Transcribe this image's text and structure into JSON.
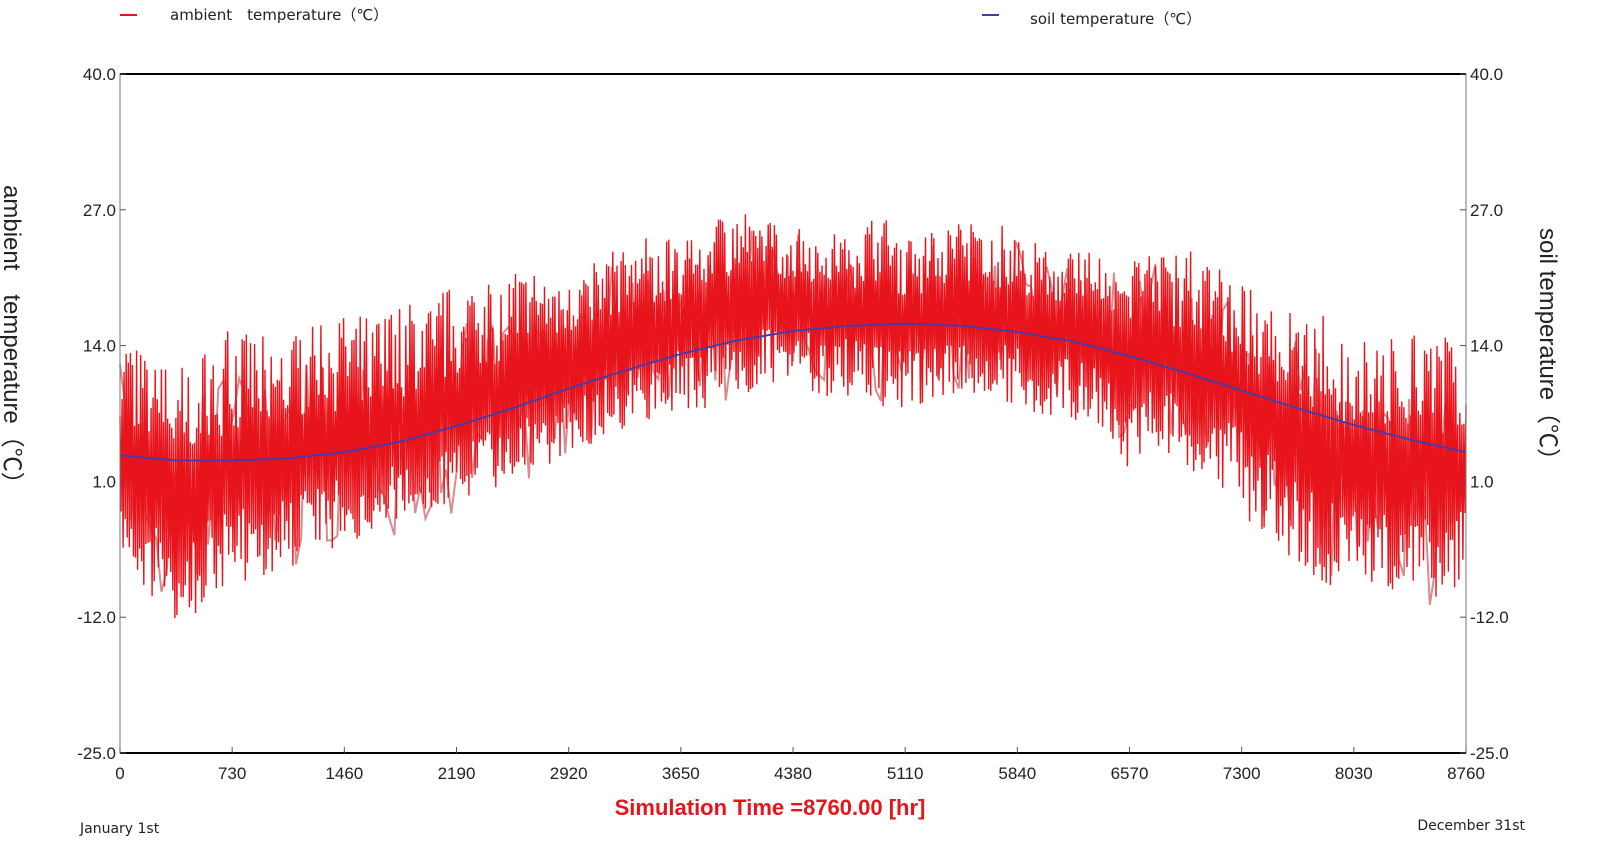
{
  "chart_data": {
    "type": "line",
    "xlabel": "Simulation Time =8760.00 [hr]",
    "ylabel_left": "ambient　temperature（℃）",
    "ylabel_right": "soil temperature（℃）",
    "start_label": "January 1st",
    "end_label": "December 31st",
    "xlim": [
      0,
      8760
    ],
    "ylim": [
      -25.0,
      40.0
    ],
    "x_ticks": [
      0,
      730,
      1460,
      2190,
      2920,
      3650,
      4380,
      5110,
      5840,
      6570,
      7300,
      8030,
      8760
    ],
    "y_ticks": [
      "-25.0",
      "-12.0",
      "1.0",
      "14.0",
      "27.0",
      "40.0"
    ],
    "colors": {
      "ambient": "#e8141c",
      "ambient_light": "#d98b8e",
      "soil": "#4a3aa8",
      "axis": "#000000"
    },
    "series": [
      {
        "name": "ambient　temperature（℃）",
        "x": [
          0,
          180,
          365,
          550,
          730,
          915,
          1095,
          1280,
          1460,
          1645,
          1825,
          2010,
          2190,
          2375,
          2555,
          2740,
          2920,
          3105,
          3285,
          3470,
          3650,
          3835,
          4015,
          4200,
          4380,
          4565,
          4745,
          4930,
          5110,
          5295,
          5475,
          5660,
          5840,
          6025,
          6205,
          6390,
          6570,
          6755,
          6935,
          7120,
          7300,
          7485,
          7665,
          7850,
          8030,
          8215,
          8395,
          8580,
          8760
        ],
        "y": [
          3.5,
          1.0,
          -1.0,
          0.5,
          1.5,
          2.0,
          2.5,
          3.5,
          4.0,
          4.5,
          5.0,
          6.0,
          7.0,
          8.0,
          9.0,
          10.5,
          11.5,
          13.0,
          14.0,
          15.0,
          16.0,
          16.5,
          17.5,
          18.0,
          18.0,
          17.5,
          17.0,
          16.5,
          16.0,
          16.5,
          17.0,
          17.0,
          16.5,
          16.0,
          15.5,
          14.5,
          13.5,
          13.0,
          12.0,
          11.0,
          9.0,
          7.0,
          5.0,
          3.5,
          2.0,
          1.5,
          1.0,
          0.5,
          1.0
        ],
        "min": [
          -7,
          -10,
          -13,
          -11,
          -9,
          -8,
          -8,
          -6,
          -5,
          -4,
          -3,
          -2,
          -1,
          0,
          1,
          2,
          3,
          5,
          6,
          7,
          8,
          8,
          9,
          10,
          10,
          9,
          9,
          8,
          8,
          8,
          9,
          9,
          8,
          7,
          7,
          5,
          2,
          3,
          2,
          1,
          -2,
          -5,
          -7,
          -9,
          -10,
          -10,
          -9,
          -11,
          -8
        ],
        "max": [
          16,
          13,
          12,
          14,
          16,
          15,
          15,
          16,
          17,
          17,
          18,
          19,
          20,
          21,
          21,
          22,
          22,
          23,
          25,
          25,
          24,
          26,
          28,
          26,
          26,
          25,
          25,
          27,
          25,
          25,
          26,
          26,
          25,
          24,
          23,
          23,
          22,
          23,
          24,
          22,
          20,
          18,
          17,
          17,
          15,
          15,
          15,
          16,
          12
        ]
      },
      {
        "name": "soil temperature（℃）",
        "x": [
          0,
          365,
          730,
          1095,
          1460,
          1825,
          2190,
          2555,
          2920,
          3285,
          3650,
          4015,
          4380,
          4745,
          5110,
          5475,
          5840,
          6205,
          6570,
          6935,
          7300,
          7665,
          8030,
          8395,
          8760
        ],
        "y": [
          3.5,
          3.0,
          3.0,
          3.2,
          3.8,
          4.8,
          6.3,
          8.0,
          9.9,
          11.6,
          13.2,
          14.5,
          15.4,
          15.9,
          16.1,
          15.9,
          15.3,
          14.4,
          13.0,
          11.4,
          9.7,
          8.0,
          6.4,
          5.0,
          3.8
        ]
      }
    ]
  }
}
